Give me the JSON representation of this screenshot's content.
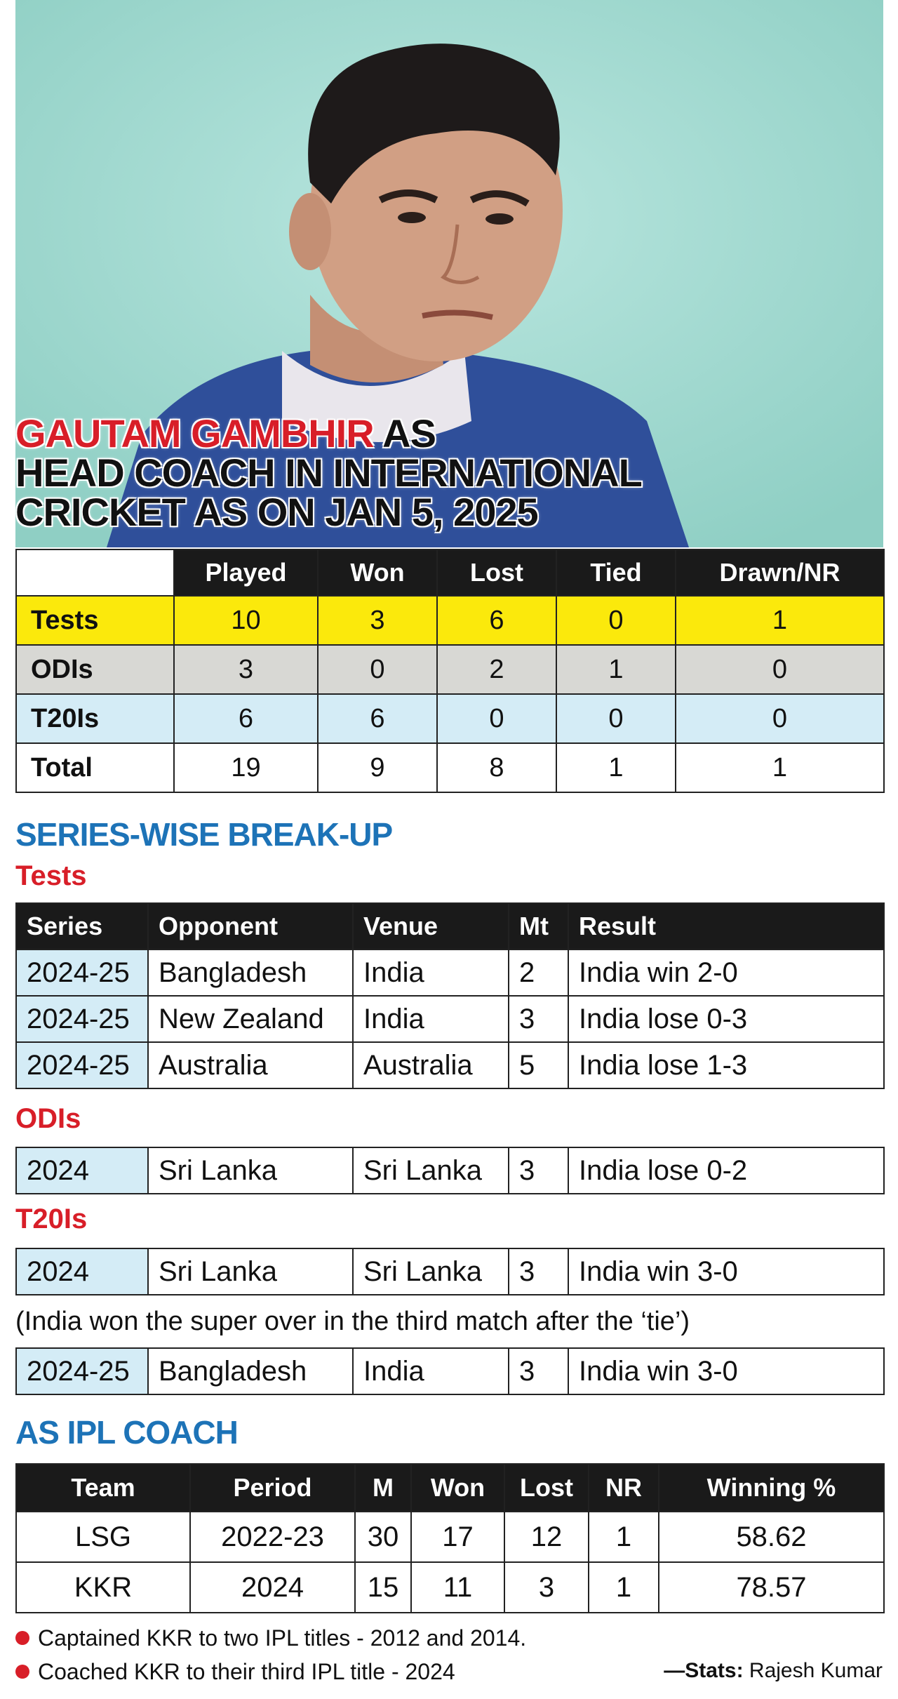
{
  "headline": {
    "name": "GAUTAM GAMBHIR",
    "line1_rest": " AS",
    "line2": "HEAD COACH IN INTERNATIONAL",
    "line3": "CRICKET AS ON JAN 5, 2025"
  },
  "summary": {
    "headers": [
      "Played",
      "Won",
      "Lost",
      "Tied",
      "Drawn/NR"
    ],
    "rows": [
      {
        "label": "Tests",
        "values": [
          "10",
          "3",
          "6",
          "0",
          "1"
        ]
      },
      {
        "label": "ODIs",
        "values": [
          "3",
          "0",
          "2",
          "1",
          "0"
        ]
      },
      {
        "label": "T20Is",
        "values": [
          "6",
          "6",
          "0",
          "0",
          "0"
        ]
      },
      {
        "label": "Total",
        "values": [
          "19",
          "9",
          "8",
          "1",
          "1"
        ]
      }
    ]
  },
  "series_section": {
    "title": "SERIES-WISE BREAK-UP",
    "tests_label": "Tests",
    "headers": [
      "Series",
      "Opponent",
      "Venue",
      "Mt",
      "Result"
    ],
    "tests": [
      {
        "series": "2024-25",
        "opponent": "Bangladesh",
        "venue": "India",
        "mt": "2",
        "result": "India win 2-0"
      },
      {
        "series": "2024-25",
        "opponent": "New Zealand",
        "venue": "India",
        "mt": "3",
        "result": "India lose 0-3"
      },
      {
        "series": "2024-25",
        "opponent": "Australia",
        "venue": "Australia",
        "mt": "5",
        "result": "India lose 1-3"
      }
    ],
    "odis_label": "ODIs",
    "odis": [
      {
        "series": "2024",
        "opponent": "Sri Lanka",
        "venue": "Sri Lanka",
        "mt": "3",
        "result": "India lose 0-2"
      }
    ],
    "t20is_label": "T20Is",
    "t20is_1": [
      {
        "series": "2024",
        "opponent": "Sri Lanka",
        "venue": "Sri Lanka",
        "mt": "3",
        "result": "India win 3-0"
      }
    ],
    "t20_note": "(India won the super over in the third match after the ‘tie’)",
    "t20is_2": [
      {
        "series": "2024-25",
        "opponent": "Bangladesh",
        "venue": "India",
        "mt": "3",
        "result": "India win 3-0"
      }
    ]
  },
  "ipl": {
    "title": "AS IPL COACH",
    "headers": [
      "Team",
      "Period",
      "M",
      "Won",
      "Lost",
      "NR",
      "Winning %"
    ],
    "rows": [
      [
        "LSG",
        "2022-23",
        "30",
        "17",
        "12",
        "1",
        "58.62"
      ],
      [
        "KKR",
        "2024",
        "15",
        "11",
        "3",
        "1",
        "78.57"
      ]
    ]
  },
  "footnotes": [
    "Captained KKR to two IPL titles - 2012 and 2014.",
    "Coached KKR to their third IPL title - 2024"
  ],
  "credit": {
    "prefix": "—Stats:",
    "name": " Rajesh Kumar"
  },
  "colors": {
    "red": "#d81e28",
    "blue": "#1d73b7",
    "tests_row": "#fbe90c",
    "odis_row": "#d8d8d4",
    "t20_row": "#d4ecf6"
  }
}
